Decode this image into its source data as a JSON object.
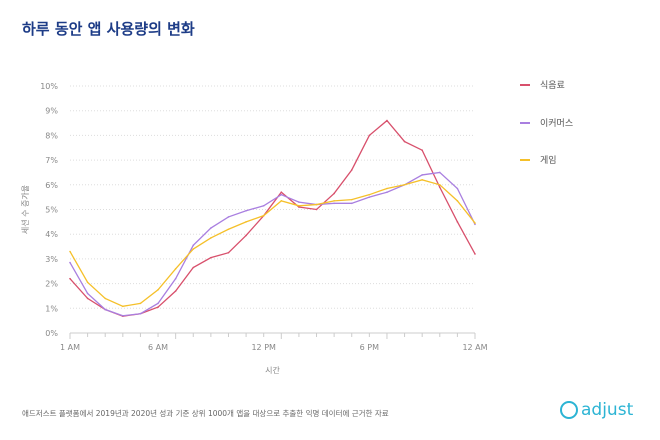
{
  "title": "하루 동안 앱 사용량의 변화",
  "footer": "애드저스트 플랫폼에서 2019년과 2020년 성과 기준 상위 1000개 앱을 대상으로 추출한 익명 데이터에 근거한 자료",
  "logo": "adjust",
  "chart_data": {
    "type": "line",
    "title": "하루 동안 앱 사용량의 변화",
    "xlabel": "시간",
    "ylabel": "세션 수 증가율",
    "ylim": [
      0,
      10
    ],
    "grid": true,
    "legend_position": "right",
    "x_tick_labels": [
      "1 AM",
      "6 AM",
      "12 PM",
      "6 PM",
      "12 AM"
    ],
    "y_tick_labels": [
      "0%",
      "1%",
      "2%",
      "3%",
      "4%",
      "5%",
      "6%",
      "7%",
      "8%",
      "9%",
      "10%"
    ],
    "x": [
      "1 AM",
      "2 AM",
      "3 AM",
      "4 AM",
      "5 AM",
      "6 AM",
      "7 AM",
      "8 AM",
      "9 AM",
      "10 AM",
      "11 AM",
      "12 PM",
      "1 PM",
      "2 PM",
      "3 PM",
      "4 PM",
      "5 PM",
      "6 PM",
      "7 PM",
      "8 PM",
      "9 PM",
      "10 PM",
      "11 PM",
      "12 AM"
    ],
    "series": [
      {
        "name": "식음료",
        "color": "#d8506c",
        "values": [
          2.2,
          1.4,
          0.95,
          0.68,
          0.78,
          1.05,
          1.7,
          2.65,
          3.05,
          3.25,
          3.95,
          4.75,
          5.7,
          5.1,
          5.0,
          5.65,
          6.6,
          8.0,
          8.6,
          7.75,
          7.4,
          5.9,
          4.5,
          3.2
        ]
      },
      {
        "name": "이커머스",
        "color": "#a97fe0",
        "values": [
          2.85,
          1.6,
          0.95,
          0.7,
          0.78,
          1.2,
          2.2,
          3.55,
          4.25,
          4.7,
          4.95,
          5.15,
          5.6,
          5.3,
          5.2,
          5.25,
          5.25,
          5.5,
          5.7,
          6.0,
          6.4,
          6.5,
          5.85,
          4.4
        ]
      },
      {
        "name": "게임",
        "color": "#f5c02a",
        "values": [
          3.3,
          2.05,
          1.4,
          1.08,
          1.2,
          1.75,
          2.6,
          3.4,
          3.85,
          4.2,
          4.5,
          4.75,
          5.35,
          5.15,
          5.2,
          5.35,
          5.4,
          5.6,
          5.85,
          6.0,
          6.2,
          6.0,
          5.35,
          4.45
        ]
      }
    ]
  }
}
